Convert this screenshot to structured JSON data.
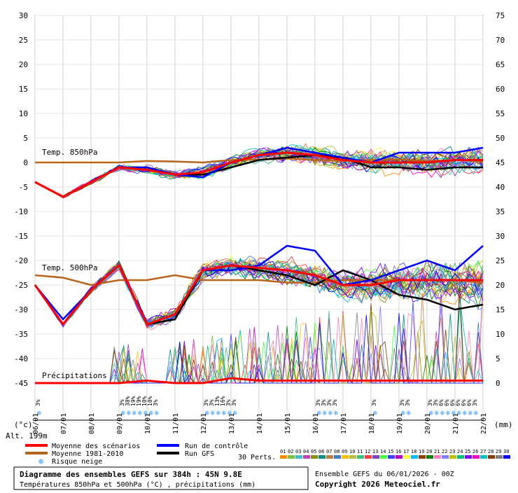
{
  "chart_data": {
    "type": "line",
    "dates": [
      "06/01",
      "07/01",
      "08/01",
      "09/01",
      "10/01",
      "11/01",
      "12/01",
      "13/01",
      "14/01",
      "15/01",
      "16/01",
      "17/01",
      "18/01",
      "19/01",
      "20/01",
      "21/01",
      "22/01"
    ],
    "left_axis": {
      "unit": "(°c)",
      "min": -45,
      "max": 30,
      "ticks": [
        30,
        25,
        20,
        15,
        10,
        5,
        0,
        -5,
        -10,
        -15,
        -20,
        -25,
        -30,
        -35,
        -40,
        -45
      ]
    },
    "right_axis": {
      "unit": "(mm)",
      "min": 0,
      "max": 75,
      "ticks": [
        75,
        70,
        65,
        60,
        55,
        50,
        45,
        40,
        35,
        30,
        25,
        20,
        15,
        10,
        5,
        0
      ]
    },
    "alt_label": "Alt. 199m",
    "panels": {
      "t850": "Temp. 850hPa",
      "t500": "Temp. 500hPa",
      "precip": "Précipitations"
    },
    "series": [
      {
        "name": "Moyenne des scénarios",
        "color": "#ff0000",
        "t850": [
          -4,
          -7,
          -4,
          -1,
          -1.5,
          -2.5,
          -2,
          0,
          1.5,
          2,
          1.5,
          0.5,
          0,
          0,
          0,
          0.5,
          0.5
        ],
        "t500": [
          -25,
          -33,
          -26,
          -21,
          -33,
          -31,
          -22,
          -21,
          -21.5,
          -22,
          -23,
          -25,
          -25,
          -24,
          -24,
          -24,
          -24
        ],
        "precip": [
          0,
          0,
          0,
          0,
          0.5,
          0,
          0,
          1,
          0.5,
          0.5,
          0.5,
          0.5,
          0.5,
          0.5,
          0.5,
          0.5,
          0.5
        ]
      },
      {
        "name": "Moyenne 1981-2010",
        "color": "#b8651b",
        "t850": [
          0,
          0,
          0,
          0,
          0.3,
          0.2,
          0,
          0.5,
          0.6,
          0.8,
          0.5,
          0.3,
          0.5,
          0.6,
          0.3,
          0.5,
          0.2
        ],
        "t500": [
          -23,
          -23.5,
          -25,
          -24,
          -24,
          -23,
          -24,
          -24,
          -24,
          -24.5,
          -24.5,
          -24,
          -24,
          -24,
          -24,
          -24,
          -24.5
        ]
      },
      {
        "name": "Run de contrôle",
        "color": "#0000ff",
        "t850": [
          -4,
          -7,
          -4,
          -1,
          -1,
          -2.5,
          -3,
          0,
          1.5,
          3,
          2,
          1,
          0,
          2,
          2,
          2,
          3
        ],
        "t500": [
          -25,
          -32,
          -26,
          -21,
          -33,
          -31,
          -22,
          -22,
          -21,
          -17,
          -18,
          -25,
          -24,
          -22,
          -20,
          -22,
          -17
        ]
      },
      {
        "name": "Run GFS",
        "color": "#000000",
        "t850": [
          -4,
          -7,
          -4,
          -1,
          -1.5,
          -2.5,
          -2.5,
          -1,
          0.5,
          1,
          1.5,
          1,
          -1,
          -1,
          -1.5,
          -1,
          -1
        ],
        "t500": [
          -25,
          -33,
          -26,
          -21,
          -33,
          -32,
          -22,
          -21,
          -22,
          -23,
          -25,
          -22,
          -24,
          -27,
          -28,
          -30,
          -29
        ]
      }
    ],
    "snow_risk": [
      {
        "date": "06/01",
        "labels": [
          "3%"
        ]
      },
      {
        "date": "09/01",
        "labels": [
          "3%",
          "38%",
          "19%",
          "19%",
          "10%",
          "10%",
          "3%"
        ]
      },
      {
        "date": "12/01",
        "labels": [
          "3%",
          "3%",
          "13%",
          "16%",
          "3%",
          "3%"
        ]
      },
      {
        "date": "16/01",
        "labels": [
          "3%",
          "3%",
          "3%",
          "3%"
        ]
      },
      {
        "date": "18/01",
        "labels": [
          "3%"
        ]
      },
      {
        "date": "19/01",
        "labels": [
          "3%",
          "3%"
        ]
      },
      {
        "date": "20/01",
        "labels": [
          "3%",
          "3%",
          "6%",
          "6%",
          "6%",
          "6%",
          "6%",
          "6%",
          "3%"
        ]
      }
    ]
  },
  "legend": {
    "mean_scenarios": "Moyenne des scénarios",
    "mean_1981": "Moyenne 1981-2010",
    "control": "Run de contrôle",
    "gfs": "Run GFS",
    "snow": "Risque neige",
    "perts": "30 Perts.",
    "pert_numbers": [
      "01",
      "02",
      "03",
      "04",
      "05",
      "06",
      "07",
      "08",
      "09",
      "10",
      "11",
      "12",
      "13",
      "14",
      "15",
      "16",
      "17",
      "18",
      "19",
      "20",
      "21",
      "22",
      "23",
      "24",
      "25",
      "26",
      "27",
      "28",
      "29",
      "30"
    ],
    "pert_colors": [
      "#ff8c00",
      "#7fbf3f",
      "#3fbfbf",
      "#bf3fbf",
      "#8c8c00",
      "#008c8c",
      "#bf7f3f",
      "#3f7fbf",
      "#ffbf00",
      "#bfbf3f",
      "#3fbf7f",
      "#ff3f3f",
      "#7f3fbf",
      "#3fff3f",
      "#3f3fff",
      "#bf00bf",
      "#ffff3f",
      "#00bfff",
      "#8c3f00",
      "#007f00",
      "#ff7fbf",
      "#7f7fff",
      "#bfbf00",
      "#00bf7f",
      "#7f00ff",
      "#ff00bf",
      "#00bfbf",
      "#7f3f00",
      "#7f7f7f",
      "#0000ff"
    ]
  },
  "footer": {
    "title": "Diagramme des ensembles GEFS sur 384h : 45N 9.8E",
    "subtitle": "Températures 850hPa et 500hPa (°C) , précipitations (mm)",
    "ensemble": "Ensemble GEFS du 06/01/2026 - 00Z",
    "copyright": "Copyright 2026 Meteociel.fr"
  }
}
